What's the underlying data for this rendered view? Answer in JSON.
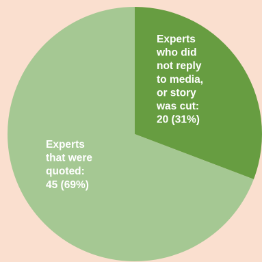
{
  "page": {
    "background": "#fadfcf"
  },
  "chart_data": {
    "type": "pie",
    "title": "",
    "legend": "none",
    "slices": [
      {
        "label_lines": [
          "Experts",
          "who did",
          "not reply",
          "to media,",
          "or story",
          "was cut:",
          "20 (31%)"
        ],
        "value": 20,
        "percent": 31,
        "color": "#679d41"
      },
      {
        "label_lines": [
          "Experts",
          "that were",
          "quoted:",
          "45 (69%)"
        ],
        "value": 45,
        "percent": 69,
        "color": "#a5c893"
      }
    ]
  }
}
